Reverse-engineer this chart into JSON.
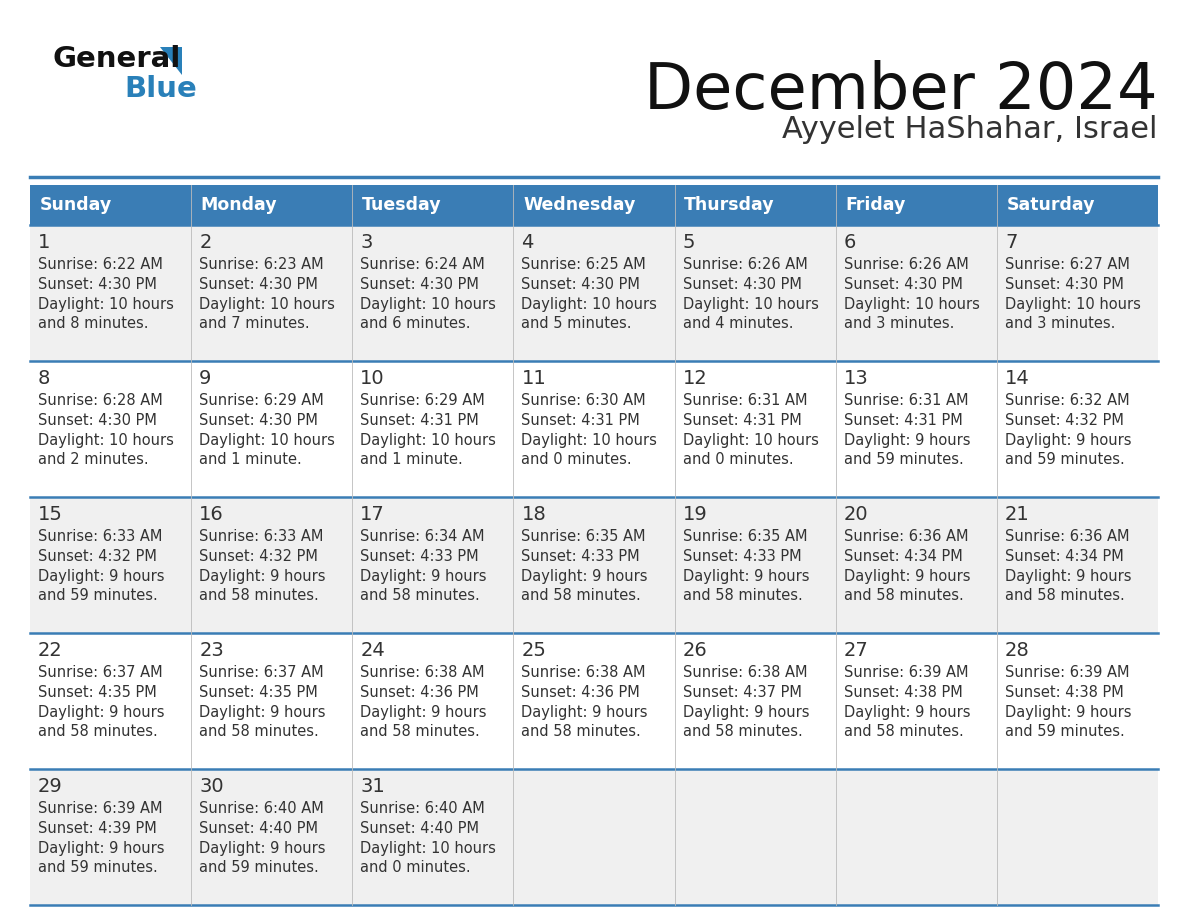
{
  "title": "December 2024",
  "subtitle": "Ayyelet HaShahar, Israel",
  "days_of_week": [
    "Sunday",
    "Monday",
    "Tuesday",
    "Wednesday",
    "Thursday",
    "Friday",
    "Saturday"
  ],
  "header_bg": "#3A7DB5",
  "header_text_color": "#FFFFFF",
  "row_bg_even": "#F0F0F0",
  "row_bg_odd": "#FFFFFF",
  "separator_color": "#3A7DB5",
  "text_color": "#333333",
  "title_color": "#111111",
  "subtitle_color": "#333333",
  "logo_general_color": "#111111",
  "logo_blue_color": "#2980B9",
  "calendar_data": [
    [
      {
        "day": 1,
        "sunrise": "6:22 AM",
        "sunset": "4:30 PM",
        "daylight_line1": "Daylight: 10 hours",
        "daylight_line2": "and 8 minutes."
      },
      {
        "day": 2,
        "sunrise": "6:23 AM",
        "sunset": "4:30 PM",
        "daylight_line1": "Daylight: 10 hours",
        "daylight_line2": "and 7 minutes."
      },
      {
        "day": 3,
        "sunrise": "6:24 AM",
        "sunset": "4:30 PM",
        "daylight_line1": "Daylight: 10 hours",
        "daylight_line2": "and 6 minutes."
      },
      {
        "day": 4,
        "sunrise": "6:25 AM",
        "sunset": "4:30 PM",
        "daylight_line1": "Daylight: 10 hours",
        "daylight_line2": "and 5 minutes."
      },
      {
        "day": 5,
        "sunrise": "6:26 AM",
        "sunset": "4:30 PM",
        "daylight_line1": "Daylight: 10 hours",
        "daylight_line2": "and 4 minutes."
      },
      {
        "day": 6,
        "sunrise": "6:26 AM",
        "sunset": "4:30 PM",
        "daylight_line1": "Daylight: 10 hours",
        "daylight_line2": "and 3 minutes."
      },
      {
        "day": 7,
        "sunrise": "6:27 AM",
        "sunset": "4:30 PM",
        "daylight_line1": "Daylight: 10 hours",
        "daylight_line2": "and 3 minutes."
      }
    ],
    [
      {
        "day": 8,
        "sunrise": "6:28 AM",
        "sunset": "4:30 PM",
        "daylight_line1": "Daylight: 10 hours",
        "daylight_line2": "and 2 minutes."
      },
      {
        "day": 9,
        "sunrise": "6:29 AM",
        "sunset": "4:30 PM",
        "daylight_line1": "Daylight: 10 hours",
        "daylight_line2": "and 1 minute."
      },
      {
        "day": 10,
        "sunrise": "6:29 AM",
        "sunset": "4:31 PM",
        "daylight_line1": "Daylight: 10 hours",
        "daylight_line2": "and 1 minute."
      },
      {
        "day": 11,
        "sunrise": "6:30 AM",
        "sunset": "4:31 PM",
        "daylight_line1": "Daylight: 10 hours",
        "daylight_line2": "and 0 minutes."
      },
      {
        "day": 12,
        "sunrise": "6:31 AM",
        "sunset": "4:31 PM",
        "daylight_line1": "Daylight: 10 hours",
        "daylight_line2": "and 0 minutes."
      },
      {
        "day": 13,
        "sunrise": "6:31 AM",
        "sunset": "4:31 PM",
        "daylight_line1": "Daylight: 9 hours",
        "daylight_line2": "and 59 minutes."
      },
      {
        "day": 14,
        "sunrise": "6:32 AM",
        "sunset": "4:32 PM",
        "daylight_line1": "Daylight: 9 hours",
        "daylight_line2": "and 59 minutes."
      }
    ],
    [
      {
        "day": 15,
        "sunrise": "6:33 AM",
        "sunset": "4:32 PM",
        "daylight_line1": "Daylight: 9 hours",
        "daylight_line2": "and 59 minutes."
      },
      {
        "day": 16,
        "sunrise": "6:33 AM",
        "sunset": "4:32 PM",
        "daylight_line1": "Daylight: 9 hours",
        "daylight_line2": "and 58 minutes."
      },
      {
        "day": 17,
        "sunrise": "6:34 AM",
        "sunset": "4:33 PM",
        "daylight_line1": "Daylight: 9 hours",
        "daylight_line2": "and 58 minutes."
      },
      {
        "day": 18,
        "sunrise": "6:35 AM",
        "sunset": "4:33 PM",
        "daylight_line1": "Daylight: 9 hours",
        "daylight_line2": "and 58 minutes."
      },
      {
        "day": 19,
        "sunrise": "6:35 AM",
        "sunset": "4:33 PM",
        "daylight_line1": "Daylight: 9 hours",
        "daylight_line2": "and 58 minutes."
      },
      {
        "day": 20,
        "sunrise": "6:36 AM",
        "sunset": "4:34 PM",
        "daylight_line1": "Daylight: 9 hours",
        "daylight_line2": "and 58 minutes."
      },
      {
        "day": 21,
        "sunrise": "6:36 AM",
        "sunset": "4:34 PM",
        "daylight_line1": "Daylight: 9 hours",
        "daylight_line2": "and 58 minutes."
      }
    ],
    [
      {
        "day": 22,
        "sunrise": "6:37 AM",
        "sunset": "4:35 PM",
        "daylight_line1": "Daylight: 9 hours",
        "daylight_line2": "and 58 minutes."
      },
      {
        "day": 23,
        "sunrise": "6:37 AM",
        "sunset": "4:35 PM",
        "daylight_line1": "Daylight: 9 hours",
        "daylight_line2": "and 58 minutes."
      },
      {
        "day": 24,
        "sunrise": "6:38 AM",
        "sunset": "4:36 PM",
        "daylight_line1": "Daylight: 9 hours",
        "daylight_line2": "and 58 minutes."
      },
      {
        "day": 25,
        "sunrise": "6:38 AM",
        "sunset": "4:36 PM",
        "daylight_line1": "Daylight: 9 hours",
        "daylight_line2": "and 58 minutes."
      },
      {
        "day": 26,
        "sunrise": "6:38 AM",
        "sunset": "4:37 PM",
        "daylight_line1": "Daylight: 9 hours",
        "daylight_line2": "and 58 minutes."
      },
      {
        "day": 27,
        "sunrise": "6:39 AM",
        "sunset": "4:38 PM",
        "daylight_line1": "Daylight: 9 hours",
        "daylight_line2": "and 58 minutes."
      },
      {
        "day": 28,
        "sunrise": "6:39 AM",
        "sunset": "4:38 PM",
        "daylight_line1": "Daylight: 9 hours",
        "daylight_line2": "and 59 minutes."
      }
    ],
    [
      {
        "day": 29,
        "sunrise": "6:39 AM",
        "sunset": "4:39 PM",
        "daylight_line1": "Daylight: 9 hours",
        "daylight_line2": "and 59 minutes."
      },
      {
        "day": 30,
        "sunrise": "6:40 AM",
        "sunset": "4:40 PM",
        "daylight_line1": "Daylight: 9 hours",
        "daylight_line2": "and 59 minutes."
      },
      {
        "day": 31,
        "sunrise": "6:40 AM",
        "sunset": "4:40 PM",
        "daylight_line1": "Daylight: 10 hours",
        "daylight_line2": "and 0 minutes."
      },
      null,
      null,
      null,
      null
    ]
  ]
}
